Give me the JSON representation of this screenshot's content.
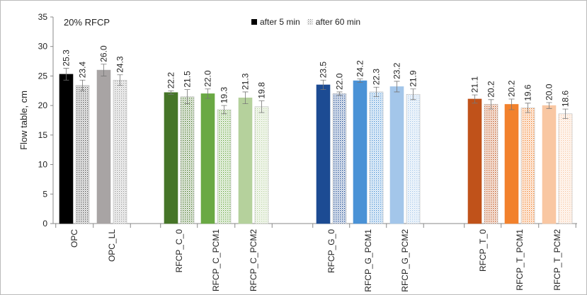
{
  "chart_data": {
    "type": "bar",
    "title": "20% RFCP",
    "y_label": "Flow table, cm",
    "categories": [
      "OPC",
      "OPC_LL",
      "RFCP_C_0",
      "RFCP_C_PCM1",
      "RFCP_C_PCM2",
      "RFCP_G_0",
      "RFCP_G_PCM1",
      "RFCP_G_PCM2",
      "RFCP_T_0",
      "RFCP_T_PCM1",
      "RFCP_T_PCM2"
    ],
    "series": [
      {
        "name": "after 5 min",
        "color": "#000000",
        "pattern": false,
        "colors": [
          "#000000",
          "#a8a4a4",
          "#467528",
          "#6aa944",
          "#b5d19c",
          "#1c4b93",
          "#4a92d6",
          "#a3c6ea",
          "#c0521a",
          "#f2812c",
          "#f9c7a2"
        ],
        "values": [
          25.3,
          26.0,
          22.2,
          22.0,
          21.3,
          23.5,
          24.2,
          23.2,
          21.1,
          20.2,
          20.0
        ],
        "value_labels": [
          "25.3",
          "26.0",
          "22.2",
          "22.0",
          "21.3",
          "23.5",
          "24.2",
          "23.2",
          "21.1",
          "20.2",
          "20.0"
        ],
        "errors": [
          1.0,
          1.0,
          0.3,
          0.8,
          1.0,
          0.8,
          0.3,
          0.9,
          0.7,
          0.9,
          0.5
        ]
      },
      {
        "name": "after 60 min",
        "color": "#9a9a9a",
        "pattern": true,
        "colors": [
          "#555555",
          "#9a9a9a",
          "#467528",
          "#6aa944",
          "#b5d19c",
          "#1c4b93",
          "#4a92d6",
          "#a3c6ea",
          "#c0521a",
          "#f2812c",
          "#f9c7a2"
        ],
        "values": [
          23.4,
          24.3,
          21.5,
          19.3,
          19.8,
          22.0,
          22.3,
          21.9,
          20.2,
          19.6,
          18.6
        ],
        "value_labels": [
          "23.4",
          "24.3",
          "21.5",
          "19.3",
          "19.8",
          "22.0",
          "22.3",
          "21.9",
          "20.2",
          "19.6",
          "18.6"
        ],
        "errors": [
          0.9,
          0.9,
          1.2,
          0.7,
          1.0,
          0.3,
          0.8,
          0.9,
          0.8,
          0.8,
          0.8
        ]
      }
    ],
    "ylim": [
      0,
      35
    ],
    "yticks": [
      0,
      5,
      10,
      15,
      20,
      25,
      30,
      35
    ],
    "grid": false,
    "legend": "top"
  }
}
